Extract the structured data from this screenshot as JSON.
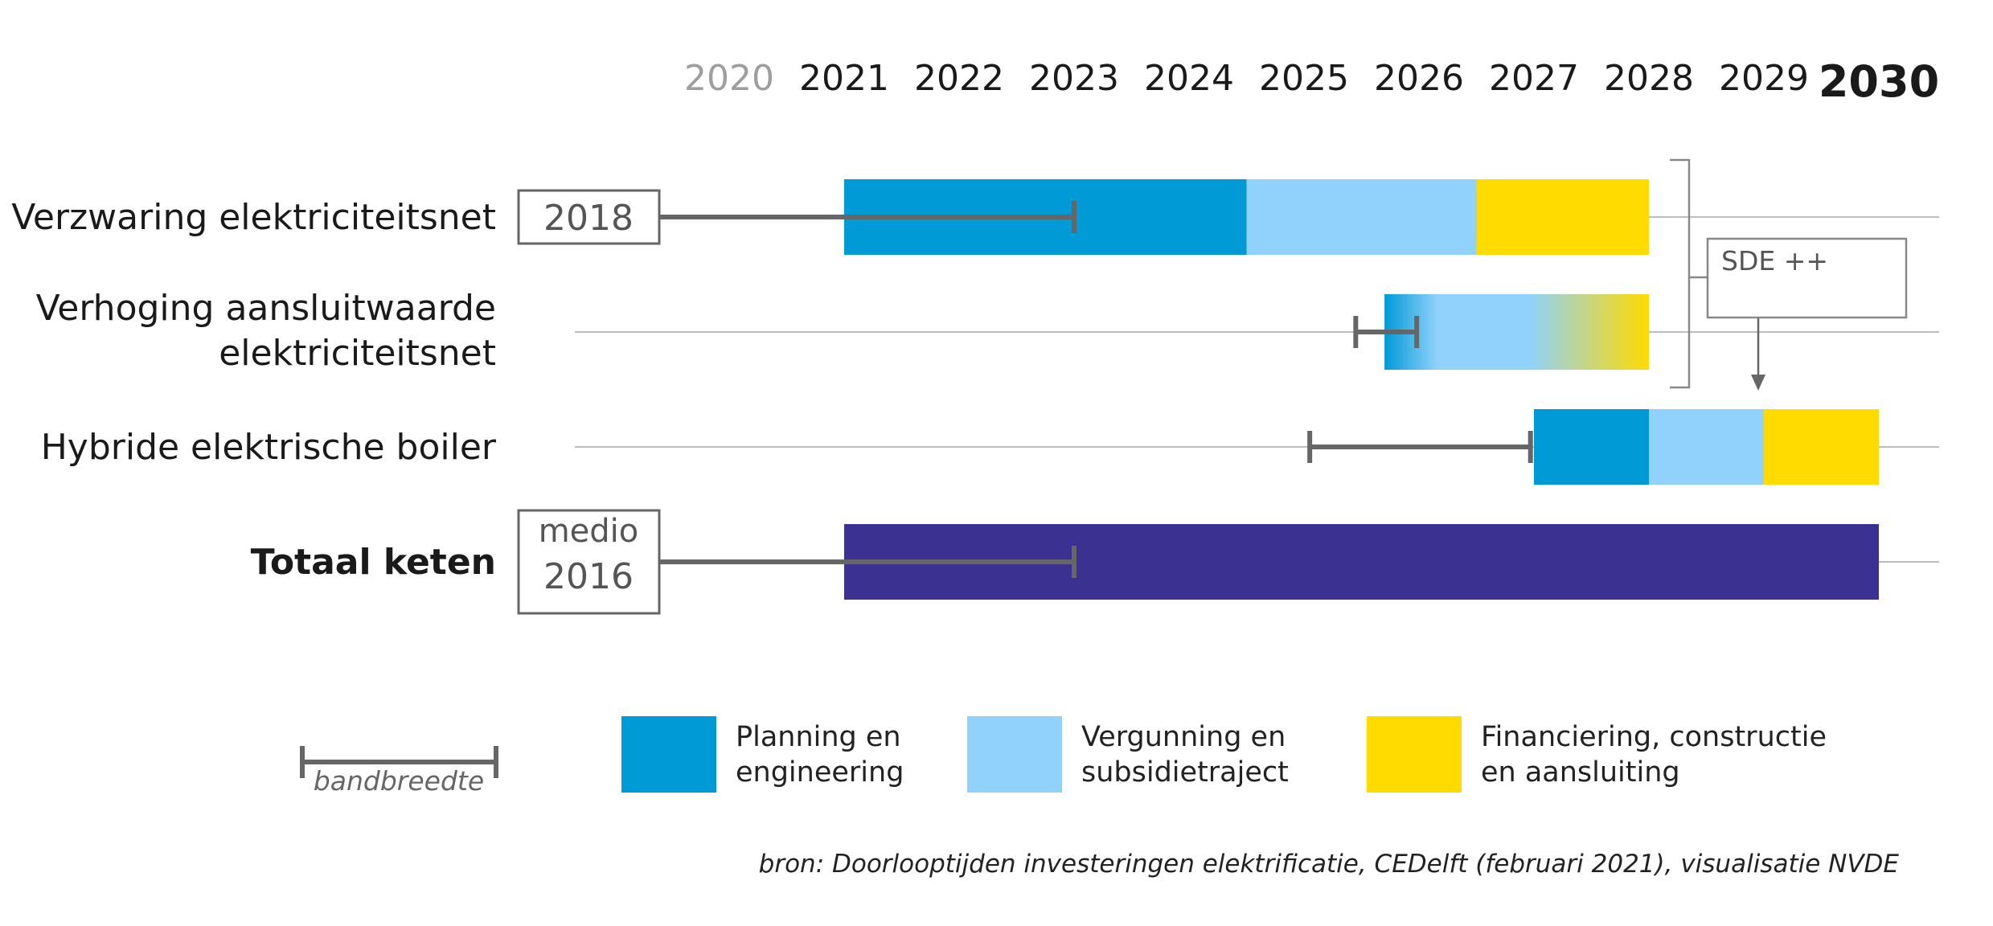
{
  "colors": {
    "planning": "#009ad7",
    "vergunning": "#90d2fb",
    "financiering": "#ffdb00",
    "totaal": "#3a3191",
    "range": "#666666",
    "gridline": "#bdbdbd"
  },
  "chart_data": {
    "type": "gantt",
    "years": [
      {
        "label": "2020",
        "style": "faded"
      },
      {
        "label": "2021",
        "style": "normal"
      },
      {
        "label": "2022",
        "style": "normal"
      },
      {
        "label": "2023",
        "style": "normal"
      },
      {
        "label": "2024",
        "style": "normal"
      },
      {
        "label": "2025",
        "style": "normal"
      },
      {
        "label": "2026",
        "style": "normal"
      },
      {
        "label": "2027",
        "style": "normal"
      },
      {
        "label": "2028",
        "style": "normal"
      },
      {
        "label": "2029",
        "style": "normal"
      },
      {
        "label": "2030",
        "style": "bold"
      }
    ],
    "rows": [
      {
        "name": "verzwaring",
        "label_lines": [
          "Verzwaring elektriciteitsnet"
        ],
        "bold": false,
        "start_box_lines": [
          "2018"
        ],
        "range": {
          "from": 2018,
          "to": 2023
        },
        "segments": [
          {
            "phase": "planning",
            "from": 2021,
            "to": 2024.5
          },
          {
            "phase": "vergunning",
            "from": 2024.5,
            "to": 2026.5
          },
          {
            "phase": "financiering",
            "from": 2026.5,
            "to": 2028
          }
        ]
      },
      {
        "name": "verhoging",
        "label_lines": [
          "Verhoging aansluitwaarde",
          "elektriciteitsnet"
        ],
        "bold": false,
        "start_box_lines": [],
        "range": {
          "from": 2025.45,
          "to": 2025.98
        },
        "gradient": true,
        "segments": [
          {
            "phase": "planning",
            "from": 2025.7,
            "to": 2028
          }
        ]
      },
      {
        "name": "hybride",
        "label_lines": [
          "Hybride elektrische boiler"
        ],
        "bold": false,
        "start_box_lines": [],
        "range": {
          "from": 2025.05,
          "to": 2026.97
        },
        "segments": [
          {
            "phase": "planning",
            "from": 2027,
            "to": 2028
          },
          {
            "phase": "vergunning",
            "from": 2028,
            "to": 2029
          },
          {
            "phase": "financiering",
            "from": 2029,
            "to": 2030
          }
        ]
      },
      {
        "name": "totaal",
        "label_lines": [
          "Totaal keten"
        ],
        "bold": true,
        "start_box_lines": [
          "medio",
          "2016"
        ],
        "range": {
          "from": 2016.5,
          "to": 2023
        },
        "segments": [
          {
            "phase": "totaal",
            "from": 2021,
            "to": 2030
          }
        ]
      }
    ],
    "annotation": {
      "label": "SDE ++"
    },
    "legend": [
      {
        "phase": "planning",
        "lines": [
          "Planning en",
          "engineering"
        ]
      },
      {
        "phase": "vergunning",
        "lines": [
          "Vergunning en",
          "subsidietraject"
        ]
      },
      {
        "phase": "financiering",
        "lines": [
          "Financiering, constructie",
          "en aansluiting"
        ]
      }
    ],
    "range_legend_label": "bandbreedte",
    "source": "bron: Doorlooptijden investeringen elektrificatie, CEDelft (februari 2021), visualisatie NVDE"
  }
}
